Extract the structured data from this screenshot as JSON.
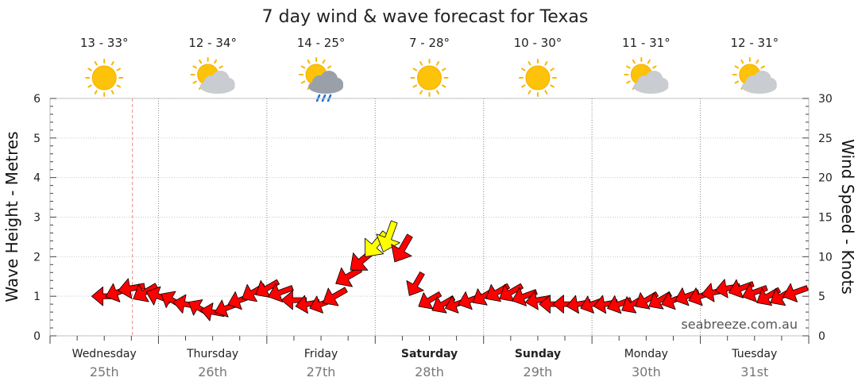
{
  "chart_data": {
    "type": "line",
    "title": "7 day wind & wave forecast for Texas",
    "ylabel_left": "Wave Height - Metres",
    "ylabel_right": "Wind Speed - Knots",
    "ylim_left": [
      0,
      6
    ],
    "ylim_right": [
      0,
      30
    ],
    "yticks_left": [
      "0",
      "1",
      "2",
      "3",
      "4",
      "5",
      "6"
    ],
    "yticks_right": [
      "0",
      "5",
      "10",
      "15",
      "20",
      "25",
      "30"
    ],
    "grid": true,
    "days": [
      {
        "name": "Wednesday",
        "date": "25th",
        "temp": "13 - 33°",
        "icon": "sun-icon",
        "bold": false
      },
      {
        "name": "Thursday",
        "date": "26th",
        "temp": "12 - 34°",
        "icon": "sun-cloud-icon",
        "bold": false
      },
      {
        "name": "Friday",
        "date": "27th",
        "temp": "14 - 25°",
        "icon": "sun-cloud-rain-icon",
        "bold": false
      },
      {
        "name": "Saturday",
        "date": "28th",
        "temp": "7 - 28°",
        "icon": "sun-icon",
        "bold": true
      },
      {
        "name": "Sunday",
        "date": "29th",
        "temp": "10 - 30°",
        "icon": "sun-icon",
        "bold": true
      },
      {
        "name": "Monday",
        "date": "30th",
        "temp": "11 - 31°",
        "icon": "sun-cloud-icon",
        "bold": false
      },
      {
        "name": "Tuesday",
        "date": "31st",
        "temp": "12 - 31°",
        "icon": "sun-cloud-icon",
        "bold": false
      }
    ],
    "series": [
      {
        "x_hours": [
          0,
          3,
          6,
          9,
          12,
          15,
          18,
          21,
          24,
          27,
          30,
          33,
          36,
          39,
          42,
          45,
          48,
          51,
          54,
          57,
          60,
          63,
          66,
          69,
          72,
          75,
          78,
          81,
          84,
          87,
          90,
          93,
          96,
          99,
          102,
          105,
          108,
          111,
          114,
          117,
          120,
          123,
          126,
          129,
          132,
          135,
          138,
          141,
          144,
          147,
          150,
          153,
          156,
          159,
          162,
          165
        ],
        "wind_knots": [
          5,
          6,
          7,
          7,
          6,
          5,
          5,
          4,
          4,
          4,
          5,
          6,
          6,
          6,
          5,
          4,
          4,
          7,
          9,
          10,
          12,
          13,
          11,
          6,
          5,
          5,
          4,
          5,
          5,
          6,
          6,
          6,
          5,
          4,
          4,
          4,
          4,
          4,
          5,
          5,
          5,
          5,
          5,
          5,
          5,
          5,
          5,
          6,
          6,
          6,
          6,
          6,
          5,
          5,
          5,
          5
        ],
        "wind_dir_deg": [
          270,
          250,
          260,
          240,
          290,
          300,
          280,
          300,
          280,
          250,
          250,
          240,
          240,
          250,
          270,
          260,
          250,
          240,
          240,
          230,
          220,
          200,
          210,
          210,
          240,
          240,
          250,
          250,
          240,
          240,
          240,
          250,
          260,
          270,
          270,
          260,
          250,
          260,
          250,
          240,
          240,
          240,
          250,
          250,
          250,
          260,
          260,
          250,
          250,
          240,
          240,
          250,
          260,
          270,
          270,
          270
        ],
        "wave_m": [
          1.0,
          1.1,
          1.2,
          1.1,
          1.0,
          0.9,
          0.8,
          0.7,
          0.6,
          0.7,
          0.9,
          1.1,
          1.2,
          1.1,
          0.9,
          0.8,
          0.8,
          1.0,
          1.5,
          1.9,
          2.3,
          2.5,
          2.2,
          1.3,
          0.9,
          0.8,
          0.8,
          0.9,
          1.0,
          1.1,
          1.1,
          1.0,
          0.9,
          0.8,
          0.8,
          0.8,
          0.8,
          0.8,
          0.8,
          0.8,
          0.9,
          0.9,
          0.9,
          1.0,
          1.0,
          1.1,
          1.2,
          1.2,
          1.1,
          1.0,
          1.0,
          1.1,
          1.2,
          1.3,
          1.4,
          1.3
        ]
      }
    ]
  },
  "watermark": "seabreeze.com.au",
  "colors": {
    "arrow_normal": "#ff0000",
    "arrow_strong": "#ffff00",
    "grid": "#c8c8c8",
    "day_divider": "#888888",
    "now_line": "#e88888"
  }
}
